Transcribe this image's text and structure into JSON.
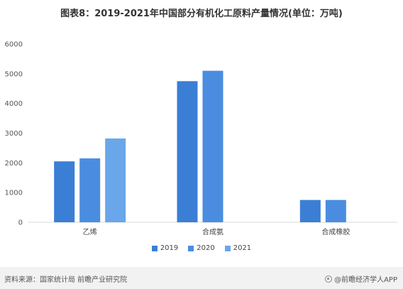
{
  "title": "图表8：2019-2021年中国部分有机化工原料产量情况(单位：万吨)",
  "footer": {
    "source": "资料来源：国家统计局 前瞻产业研究院",
    "brand": "@前瞻经济学人APP",
    "brand_icon": "brand-logo-icon"
  },
  "colors": {
    "2019": "#3a7fd5",
    "2020": "#4a8de0",
    "2021": "#6aa6ea",
    "axis": "#d9d9d9"
  },
  "chart_data": {
    "type": "bar",
    "categories": [
      "乙烯",
      "合成氨",
      "合成橡胶"
    ],
    "series": [
      {
        "name": "2019",
        "values": [
          2050,
          4750,
          750
        ]
      },
      {
        "name": "2020",
        "values": [
          2150,
          5100,
          750
        ]
      },
      {
        "name": "2021",
        "values": [
          2820,
          null,
          null
        ]
      }
    ],
    "ylim": [
      0,
      6000
    ],
    "yticks": [
      "0",
      "1000",
      "2000",
      "3000",
      "4000",
      "5000",
      "6000"
    ],
    "grid": false,
    "legend": "bottom-center"
  }
}
